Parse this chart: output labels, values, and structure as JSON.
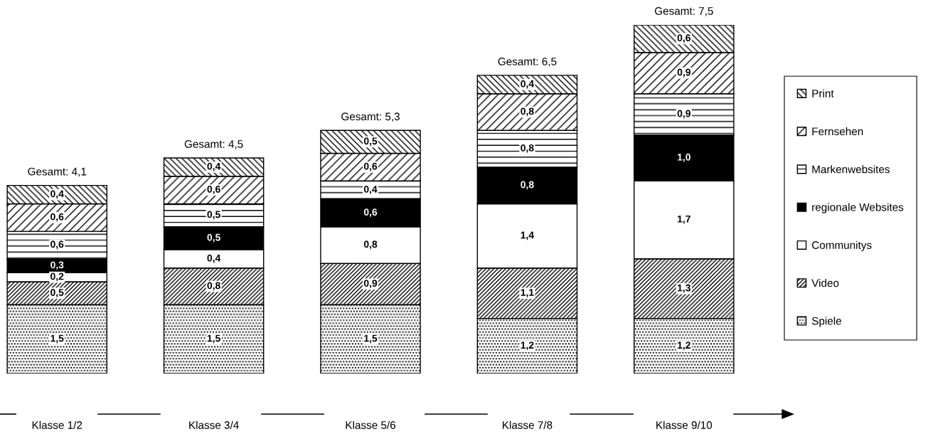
{
  "chart_data": {
    "type": "bar",
    "stacked": true,
    "legend": "right",
    "categories": [
      "Klasse 1/2",
      "Klasse 3/4",
      "Klasse 5/6",
      "Klasse 7/8",
      "Klasse 9/10"
    ],
    "totals": [
      "Gesamt: 4,1",
      "Gesamt: 4,5",
      "Gesamt: 5,3",
      "Gesamt: 6,5",
      "Gesamt: 7,5"
    ],
    "series": [
      {
        "name": "Spiele",
        "color": "#000000",
        "values": [
          1.5,
          1.5,
          1.5,
          1.2,
          1.2
        ],
        "value_labels": [
          "1,5",
          "1,5",
          "1,5",
          "1,2",
          "1,2"
        ]
      },
      {
        "name": "Video",
        "color": "#000000",
        "values": [
          0.5,
          0.8,
          0.9,
          1.1,
          1.3
        ],
        "value_labels": [
          "0,5",
          "0,8",
          "0,9",
          "1,1",
          "1,3"
        ]
      },
      {
        "name": "Communitys",
        "color": "#ffffff",
        "values": [
          0.2,
          0.4,
          0.8,
          1.4,
          1.7
        ],
        "value_labels": [
          "0,2",
          "0,4",
          "0,8",
          "1,4",
          "1,7"
        ]
      },
      {
        "name": "regionale Websites",
        "color": "#000000",
        "values": [
          0.3,
          0.5,
          0.6,
          0.8,
          1.0
        ],
        "value_labels": [
          "0,3",
          "0,5",
          "0,6",
          "0,8",
          "1,0"
        ]
      },
      {
        "name": "Markenwebsites",
        "color": "#000000",
        "values": [
          0.6,
          0.5,
          0.4,
          0.8,
          0.9
        ],
        "value_labels": [
          "0,6",
          "0,5",
          "0,4",
          "0,8",
          "0,9"
        ]
      },
      {
        "name": "Fernsehen",
        "color": "#000000",
        "values": [
          0.6,
          0.6,
          0.6,
          0.8,
          0.9
        ],
        "value_labels": [
          "0,6",
          "0,6",
          "0,6",
          "0,8",
          "0,9"
        ]
      },
      {
        "name": "Print",
        "color": "#000000",
        "values": [
          0.4,
          0.4,
          0.5,
          0.4,
          0.6
        ],
        "value_labels": [
          "0,4",
          "0,4",
          "0,5",
          "0,4",
          "0,6"
        ]
      }
    ]
  }
}
